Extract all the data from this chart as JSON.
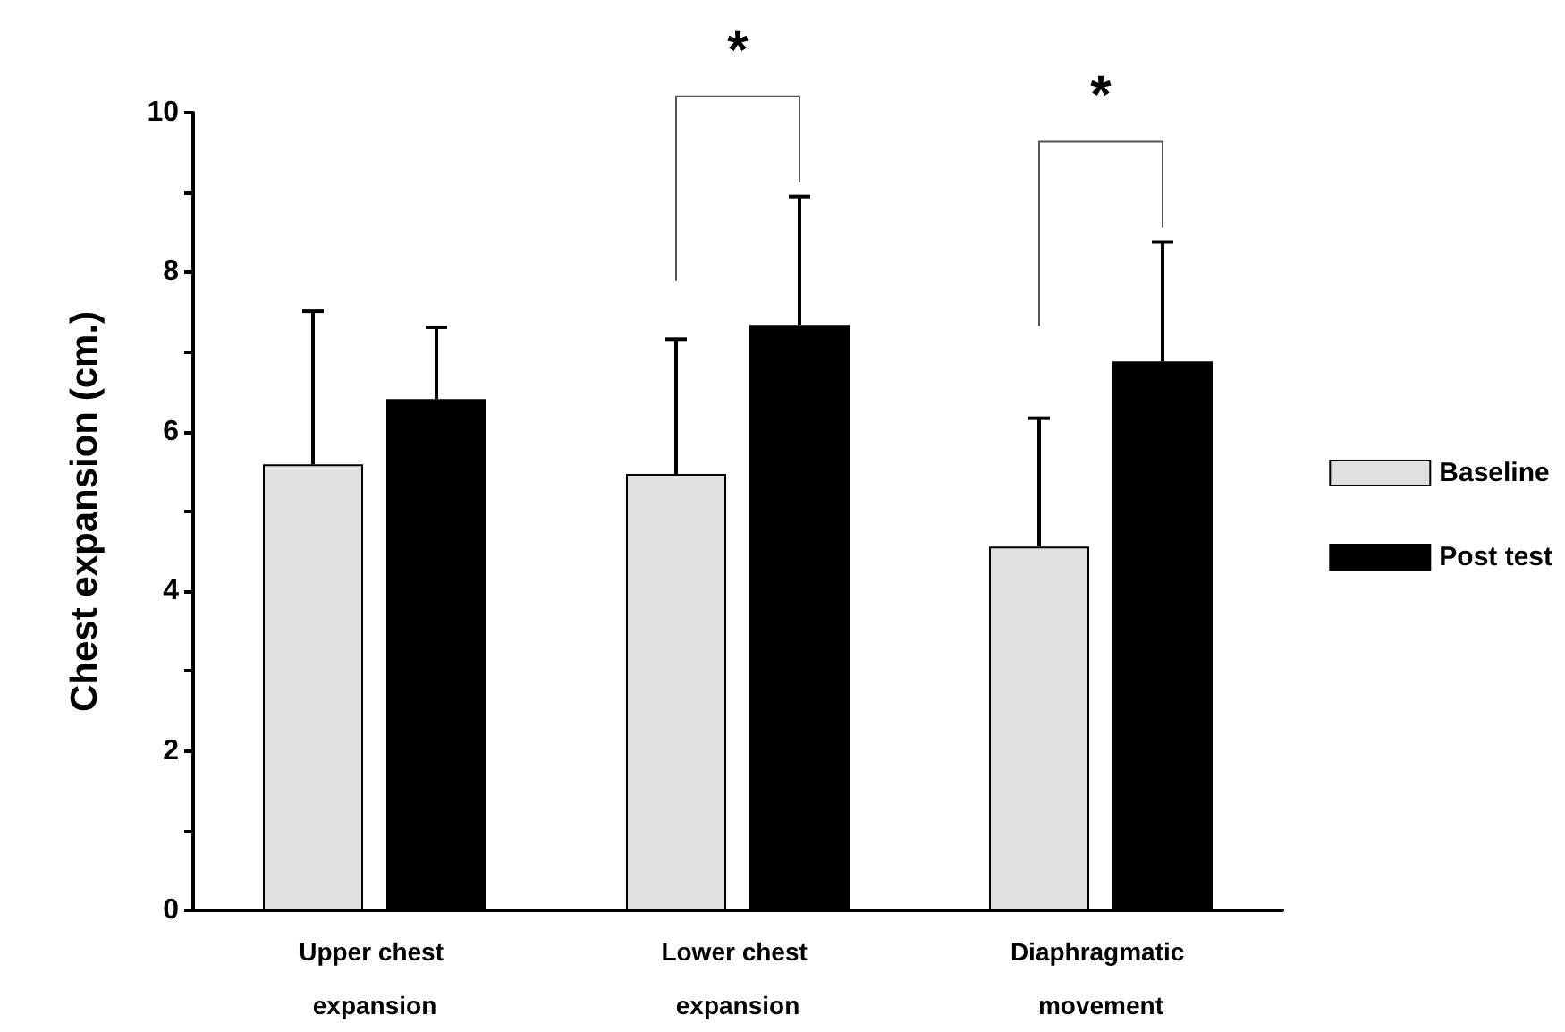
{
  "chart_data": {
    "type": "bar",
    "categories": [
      "Upper chest expansion",
      "Lower chest expansion",
      "Diaphragmatic movement"
    ],
    "ylabel": "Chest expansion (cm.)",
    "series": [
      {
        "name": "Baseline",
        "color": "#e0e0e0",
        "values": [
          5.59,
          5.47,
          4.56
        ],
        "errors": [
          [
            5.59,
            7.51
          ],
          [
            5.47,
            7.16
          ],
          [
            4.56,
            6.17
          ]
        ]
      },
      {
        "name": "Post test",
        "color": "#000000",
        "values": [
          6.41,
          7.34,
          6.88
        ],
        "errors": [
          [
            6.41,
            7.31
          ],
          [
            7.34,
            8.95
          ],
          [
            6.88,
            8.38
          ]
        ]
      }
    ],
    "ylim": [
      0,
      10
    ],
    "yticks": [
      0,
      {
        "value": 1,
        "label": null
      },
      2,
      {
        "value": 3,
        "label": null
      },
      4,
      {
        "value": 5,
        "label": null
      },
      6,
      {
        "value": 7,
        "label": null
      },
      8,
      {
        "value": 9,
        "label": null
      },
      10
    ],
    "annotations": [
      "*",
      "*"
    ],
    "grid": false,
    "legend": "right"
  }
}
